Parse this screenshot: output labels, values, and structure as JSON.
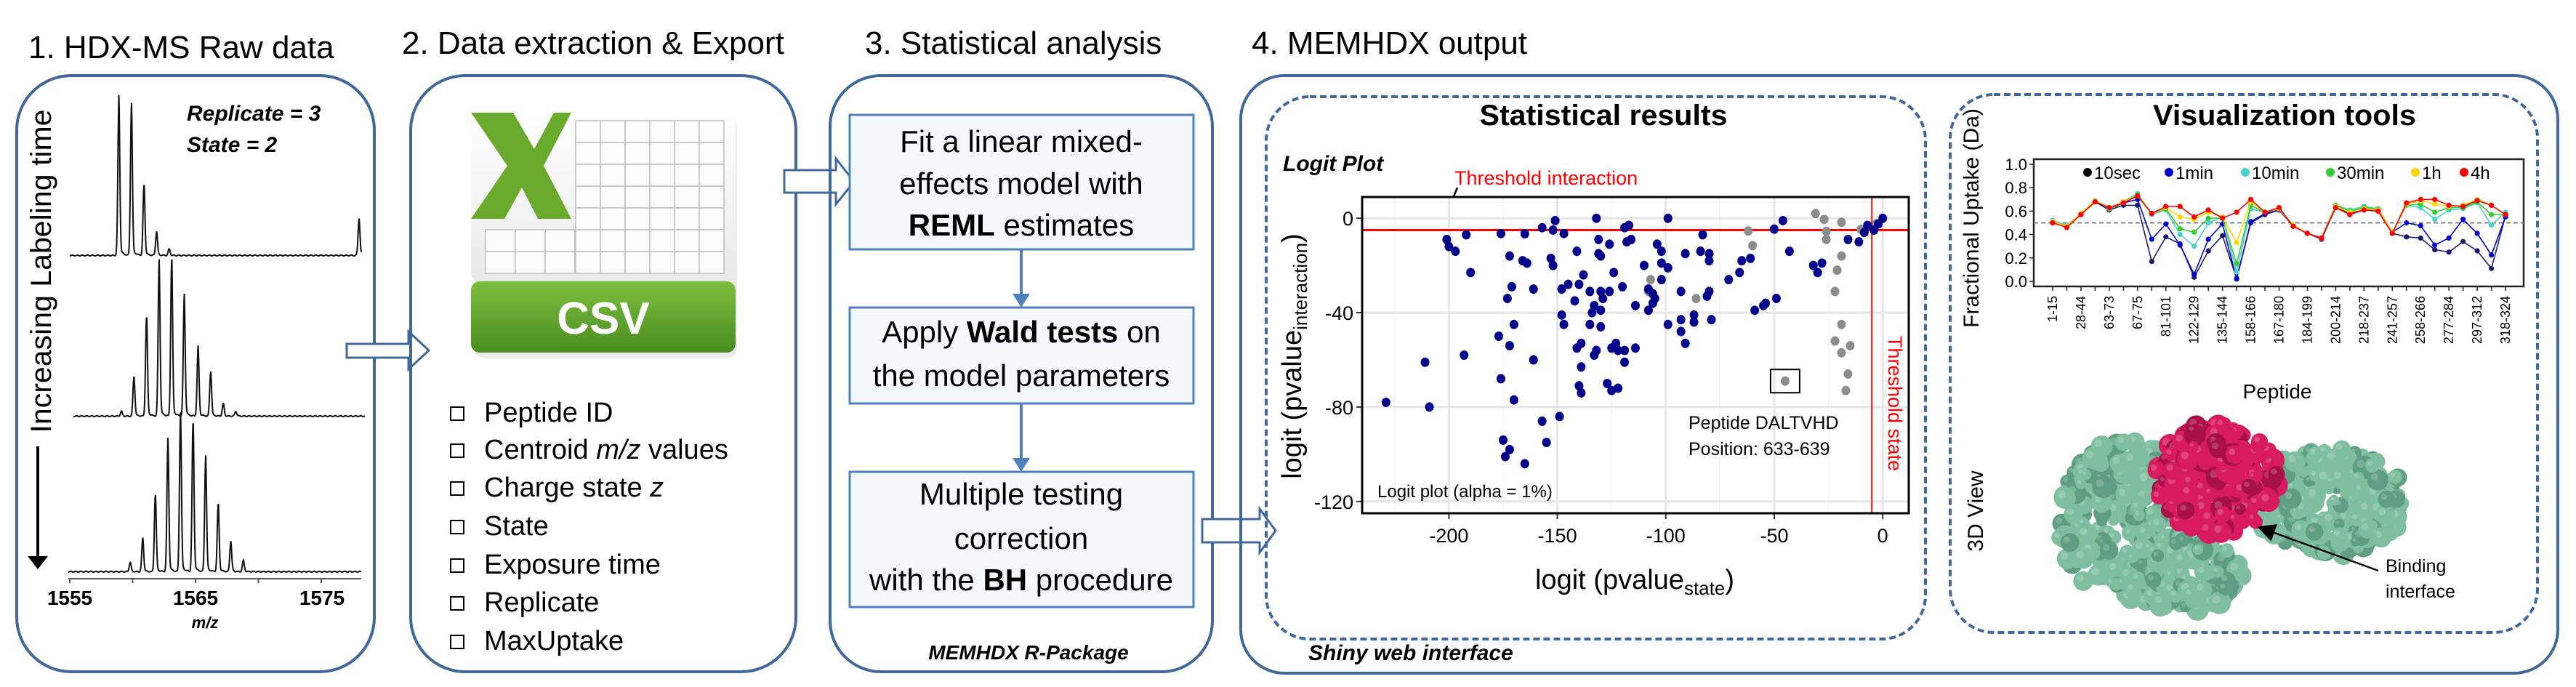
{
  "colors": {
    "panel_border": "#41689a",
    "flow_border": "#4f81bd",
    "threshold": "#ff0000",
    "significant": "#00008b",
    "not_significant": "#8c8c8c",
    "excel_green": "#5a9e2a",
    "protein_green": "#7fbf9f",
    "protein_magenta": "#d81b60"
  },
  "panel1": {
    "title": "1. HDX-MS Raw data",
    "replicate": "Replicate = 3",
    "state": "State = 2",
    "arrow_label": "Increasing Labeling time",
    "x_ticks": [
      "1555",
      "1565",
      "1575"
    ],
    "x_label": "m/z",
    "spectra": [
      {
        "peaks": [
          [
            1558.9,
            98
          ],
          [
            1559.9,
            95
          ],
          [
            1560.9,
            45
          ],
          [
            1561.9,
            15
          ],
          [
            1562.9,
            4
          ],
          [
            1578.0,
            23
          ]
        ]
      },
      {
        "peaks": [
          [
            1559.1,
            3
          ],
          [
            1560.1,
            25
          ],
          [
            1561.1,
            64
          ],
          [
            1562.1,
            97
          ],
          [
            1563.1,
            100
          ],
          [
            1564.1,
            75
          ],
          [
            1565.2,
            43
          ],
          [
            1566.2,
            28
          ],
          [
            1567.2,
            8
          ],
          [
            1568.2,
            3
          ]
        ]
      },
      {
        "peaks": [
          [
            1559.8,
            6
          ],
          [
            1560.8,
            21
          ],
          [
            1561.8,
            49
          ],
          [
            1562.8,
            82
          ],
          [
            1563.8,
            100
          ],
          [
            1564.8,
            96
          ],
          [
            1565.8,
            72
          ],
          [
            1566.8,
            43
          ],
          [
            1567.8,
            19
          ],
          [
            1568.8,
            7
          ]
        ]
      }
    ]
  },
  "panel2": {
    "title": "2. Data extraction & Export",
    "icon": "excel-csv-file-icon",
    "icon_label": "CSV",
    "icon_letter": "X",
    "items": [
      [
        {
          "t": "Peptide ID"
        }
      ],
      [
        {
          "t": "Centroid "
        },
        {
          "t": "m/z",
          "i": true
        },
        {
          "t": " values"
        }
      ],
      [
        {
          "t": "Charge state "
        },
        {
          "t": "z",
          "i": true
        }
      ],
      [
        {
          "t": "State"
        }
      ],
      [
        {
          "t": "Exposure time"
        }
      ],
      [
        {
          "t": "Replicate"
        }
      ],
      [
        {
          "t": "MaxUptake"
        }
      ]
    ]
  },
  "panel3": {
    "title": "3. Statistical analysis",
    "steps": [
      [
        [
          {
            "t": "Fit a linear mixed-"
          }
        ],
        [
          {
            "t": "effects model with"
          }
        ],
        [
          {
            "t": "REML",
            "b": true
          },
          {
            "t": " estimates"
          }
        ]
      ],
      [
        [
          {
            "t": "Apply "
          },
          {
            "t": "Wald tests",
            "b": true
          },
          {
            "t": " on"
          }
        ],
        [
          {
            "t": "the model parameters"
          }
        ]
      ],
      [
        [
          {
            "t": "Multiple testing"
          }
        ],
        [
          {
            "t": "correction"
          }
        ],
        [
          {
            "t": "with the "
          },
          {
            "t": "BH",
            "b": true
          },
          {
            "t": " procedure"
          }
        ]
      ]
    ],
    "footer": "MEMHDX R-Package"
  },
  "panel4": {
    "title": "4. MEMHDX output",
    "footer": "Shiny web interface",
    "stats_title": "Statistical results",
    "viz_title": "Visualization tools",
    "view3d_label": "3D View",
    "binding_label": [
      "Binding",
      "interface"
    ]
  },
  "chart_data": [
    {
      "type": "scatter",
      "title": "Logit Plot",
      "xlabel": {
        "main": "logit (pvalue",
        "sub": "state",
        "close": ")"
      },
      "ylabel": {
        "main": "logit (pvalue",
        "sub": "interaction",
        "close": ")"
      },
      "xlim": [
        -240,
        12
      ],
      "ylim": [
        -125,
        9
      ],
      "x_ticks": [
        -200,
        -150,
        -100,
        -50,
        0
      ],
      "y_ticks": [
        0,
        -40,
        -80,
        -120
      ],
      "grid": true,
      "threshold_interaction": {
        "value": -5,
        "label": "Threshold interaction"
      },
      "threshold_state": {
        "value": -5,
        "label": "Threshold state"
      },
      "annotation": [
        "Peptide DALTVHD",
        "Position: 633-639"
      ],
      "highlighted_point": [
        -45,
        -69
      ],
      "note": "Logit plot (alpha = 1%)",
      "significant": [
        [
          -229,
          -78
        ],
        [
          -211,
          -61
        ],
        [
          -209,
          -80
        ],
        [
          -201,
          -9
        ],
        [
          -200,
          -12
        ],
        [
          -197,
          -14
        ],
        [
          -192,
          -7
        ],
        [
          -190,
          -23
        ],
        [
          -193,
          -58
        ],
        [
          -176,
          -6.5
        ],
        [
          -172,
          -16
        ],
        [
          -171,
          -29
        ],
        [
          -173,
          -34
        ],
        [
          -170,
          -45
        ],
        [
          -177,
          -50
        ],
        [
          -172,
          -54
        ],
        [
          -176,
          -68
        ],
        [
          -170,
          -77
        ],
        [
          -166,
          -18
        ],
        [
          -164,
          -19
        ],
        [
          -165,
          -6.6
        ],
        [
          -161,
          -30
        ],
        [
          -161,
          -60
        ],
        [
          -157,
          -4
        ],
        [
          -152,
          -5
        ],
        [
          -151,
          -1
        ],
        [
          -147,
          -6.5
        ],
        [
          -153,
          -17
        ],
        [
          -152,
          -20
        ],
        [
          -148,
          -30
        ],
        [
          -145,
          -28
        ],
        [
          -148,
          -41
        ],
        [
          -147,
          -45
        ],
        [
          -142,
          -35
        ],
        [
          -141,
          -14
        ],
        [
          -138,
          -24
        ],
        [
          -140,
          -28
        ],
        [
          -135,
          -31
        ],
        [
          -141,
          -55
        ],
        [
          -139,
          -53
        ],
        [
          -139,
          -63
        ],
        [
          -140,
          -71
        ],
        [
          -139,
          -74
        ],
        [
          -132,
          0
        ],
        [
          -131,
          -9
        ],
        [
          -131,
          -15
        ],
        [
          -130,
          -16
        ],
        [
          -135,
          -45
        ],
        [
          -130,
          -46
        ],
        [
          -133,
          -37
        ],
        [
          -134,
          -40
        ],
        [
          -130,
          -39
        ],
        [
          -129,
          -34
        ],
        [
          -130,
          -31
        ],
        [
          -126,
          -31
        ],
        [
          -126,
          -11
        ],
        [
          -132,
          -56
        ],
        [
          -133,
          -58
        ],
        [
          -127,
          -70
        ],
        [
          -125,
          -73
        ],
        [
          -122,
          -72
        ],
        [
          -125,
          -55
        ],
        [
          -123,
          -53
        ],
        [
          -122,
          -56
        ],
        [
          -119,
          -56
        ],
        [
          -119,
          -61
        ],
        [
          -124,
          -23
        ],
        [
          -120,
          -29
        ],
        [
          -117,
          -3
        ],
        [
          -119,
          -4
        ],
        [
          -118,
          -10
        ],
        [
          -116,
          -9
        ],
        [
          -114,
          -37
        ],
        [
          -114,
          -55
        ],
        [
          -110,
          -20
        ],
        [
          -108,
          -30
        ],
        [
          -108,
          -39
        ],
        [
          -106,
          -36
        ],
        [
          -105,
          -34
        ],
        [
          -106,
          -32
        ],
        [
          -104,
          -11
        ],
        [
          -102,
          -14
        ],
        [
          -102,
          -19
        ],
        [
          -99,
          -21
        ],
        [
          -102,
          -26
        ],
        [
          -99,
          0
        ],
        [
          -99,
          -45
        ],
        [
          -93,
          -31
        ],
        [
          -93,
          -43
        ],
        [
          -93,
          -48
        ],
        [
          -91,
          -53
        ],
        [
          -91,
          -15
        ],
        [
          -87,
          -41
        ],
        [
          -87,
          -44
        ],
        [
          -84,
          -14
        ],
        [
          -83,
          -7
        ],
        [
          -80,
          -15
        ],
        [
          -80,
          -18
        ],
        [
          -81,
          -33
        ],
        [
          -80,
          -31
        ],
        [
          -79,
          -43
        ],
        [
          -71,
          -26
        ],
        [
          -66,
          -23
        ],
        [
          -65,
          -18
        ],
        [
          -61,
          -17
        ],
        [
          -59,
          -39
        ],
        [
          -55,
          -37
        ],
        [
          -54,
          -36
        ],
        [
          -49,
          -34
        ],
        [
          -50,
          -4.6
        ],
        [
          -46,
          -1
        ],
        [
          -43,
          -14
        ],
        [
          -32,
          -20
        ],
        [
          -30,
          -23
        ],
        [
          -28,
          -19
        ],
        [
          -16,
          -9
        ],
        [
          -11,
          -10
        ],
        [
          -8.5,
          -6
        ],
        [
          -7,
          -3
        ],
        [
          -4,
          -5
        ],
        [
          -2,
          -2.4
        ],
        [
          0,
          0
        ],
        [
          -157,
          -86
        ],
        [
          -149,
          -84
        ],
        [
          -175,
          -94
        ],
        [
          -155,
          -95
        ],
        [
          -172,
          -98
        ],
        [
          -174,
          -101
        ],
        [
          -165,
          -104
        ]
      ],
      "not_significant": [
        [
          -62,
          -5.4
        ],
        [
          -60,
          -11.6
        ],
        [
          -107,
          -26
        ],
        [
          -108,
          -31
        ],
        [
          -86,
          -34
        ],
        [
          -31,
          2
        ],
        [
          -27,
          -0.5
        ],
        [
          -26,
          -5.5
        ],
        [
          -26,
          -9
        ],
        [
          -19,
          -1.7
        ],
        [
          -19,
          -16
        ],
        [
          -21,
          -22
        ],
        [
          -22,
          -31
        ],
        [
          -19,
          -45
        ],
        [
          -22,
          -52
        ],
        [
          -19,
          -57
        ],
        [
          -15,
          -54
        ],
        [
          -16,
          -66
        ],
        [
          -17,
          -73
        ],
        [
          -45,
          -69
        ],
        [
          -10,
          -4.7
        ],
        [
          -3,
          -2.4
        ]
      ]
    },
    {
      "type": "line",
      "xlabel": "Peptide",
      "ylabel": "Fractional Uptake (Da)",
      "ylim": [
        0,
        1
      ],
      "y_ticks": [
        "0.0",
        "0.2",
        "0.4",
        "0.6",
        "0.8",
        "1.0"
      ],
      "reference_line": 0.5,
      "legend_placement": "top",
      "tick_labels": [
        "1-15",
        "",
        "28-44",
        "",
        "63-73",
        "",
        "67-75",
        "",
        "81-101",
        "",
        "122-129",
        "",
        "135-144",
        "",
        "158-166",
        "",
        "167-180",
        "",
        "184-199",
        "",
        "200-214",
        "",
        "218-237",
        "",
        "241-257",
        "",
        "258-266",
        "",
        "277-284",
        "",
        "297-312",
        "",
        "318-324"
      ],
      "series": [
        {
          "name": "10sec",
          "color": "#1c1c6e",
          "legend_color": "#000000",
          "values": [
            0.5,
            0.47,
            0.57,
            0.68,
            0.61,
            0.65,
            0.65,
            0.17,
            0.38,
            0.32,
            0.035,
            0.26,
            0.39,
            0.025,
            0.5,
            0.57,
            0.61,
            0.47,
            0.41,
            0.36,
            0.63,
            0.57,
            0.61,
            0.6,
            0.41,
            0.38,
            0.37,
            0.27,
            0.25,
            0.34,
            0.26,
            0.11,
            0.56
          ]
        },
        {
          "name": "1min",
          "color": "#0000cd",
          "legend_color": "#0000cd",
          "values": [
            0.51,
            0.47,
            0.58,
            0.68,
            0.62,
            0.67,
            0.7,
            0.36,
            0.49,
            0.31,
            0.06,
            0.36,
            0.49,
            0.02,
            0.51,
            0.58,
            0.61,
            0.47,
            0.41,
            0.37,
            0.63,
            0.58,
            0.62,
            0.6,
            0.42,
            0.5,
            0.475,
            0.31,
            0.37,
            0.53,
            0.41,
            0.225,
            0.55
          ]
        },
        {
          "name": "10min",
          "color": "#48d1cc",
          "legend_color": "#48d1cc",
          "values": [
            0.52,
            0.48,
            0.58,
            0.69,
            0.62,
            0.68,
            0.75,
            0.57,
            0.61,
            0.4,
            0.3,
            0.5,
            0.55,
            0.08,
            0.62,
            0.59,
            0.62,
            0.47,
            0.41,
            0.37,
            0.65,
            0.61,
            0.64,
            0.62,
            0.42,
            0.65,
            0.63,
            0.53,
            0.61,
            0.62,
            0.67,
            0.48,
            0.59
          ]
        },
        {
          "name": "30min",
          "color": "#32cd32",
          "legend_color": "#32cd32",
          "values": [
            0.51,
            0.47,
            0.58,
            0.69,
            0.62,
            0.68,
            0.74,
            0.58,
            0.62,
            0.45,
            0.42,
            0.54,
            0.54,
            0.15,
            0.65,
            0.59,
            0.62,
            0.47,
            0.41,
            0.37,
            0.65,
            0.6,
            0.63,
            0.62,
            0.42,
            0.65,
            0.66,
            0.59,
            0.63,
            0.63,
            0.68,
            0.57,
            0.57
          ]
        },
        {
          "name": "1h",
          "color": "#ffd700",
          "legend_color": "#ffd700",
          "values": [
            0.51,
            0.47,
            0.58,
            0.69,
            0.63,
            0.68,
            0.73,
            0.58,
            0.63,
            0.55,
            0.53,
            0.59,
            0.55,
            0.33,
            0.68,
            0.59,
            0.62,
            0.48,
            0.41,
            0.37,
            0.64,
            0.59,
            0.62,
            0.61,
            0.42,
            0.66,
            0.69,
            0.66,
            0.64,
            0.65,
            0.7,
            0.65,
            0.57
          ]
        },
        {
          "name": "4h",
          "color": "#ff0000",
          "legend_color": "#ff0000",
          "values": [
            0.5,
            0.46,
            0.57,
            0.68,
            0.63,
            0.67,
            0.73,
            0.58,
            0.64,
            0.64,
            0.55,
            0.61,
            0.54,
            0.59,
            0.7,
            0.59,
            0.63,
            0.47,
            0.41,
            0.37,
            0.63,
            0.57,
            0.61,
            0.6,
            0.41,
            0.67,
            0.7,
            0.7,
            0.65,
            0.64,
            0.69,
            0.65,
            0.57
          ]
        }
      ]
    }
  ]
}
